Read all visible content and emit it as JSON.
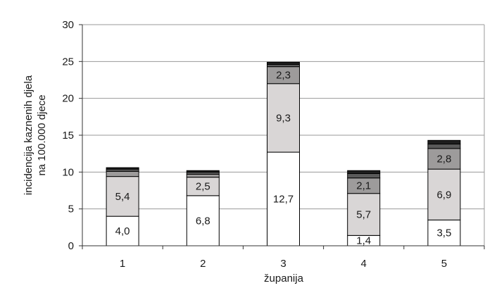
{
  "chart_data": {
    "type": "bar",
    "stacked": true,
    "categories": [
      "1",
      "2",
      "3",
      "4",
      "5"
    ],
    "xlabel": "županija",
    "ylabel_lines": [
      "incidencija kaznenih djela",
      "na 100.000 djece"
    ],
    "ylim": [
      0,
      30
    ],
    "yticks": [
      "0",
      "5",
      "10",
      "15",
      "20",
      "25",
      "30"
    ],
    "grid": "horizontal",
    "legend": "none",
    "series": [
      {
        "values": [
          4.0,
          6.8,
          12.7,
          1.4,
          3.5
        ],
        "labels": [
          "4,0",
          "6,8",
          "12,7",
          "1,4",
          "3,5"
        ],
        "color": "#ffffff"
      },
      {
        "values": [
          5.4,
          2.5,
          9.3,
          5.7,
          6.9
        ],
        "labels": [
          "5,4",
          "2,5",
          "9,3",
          "5,7",
          "6,9"
        ],
        "color": "#d9d6d6"
      },
      {
        "values": [
          0.7,
          0.4,
          2.3,
          2.1,
          2.8
        ],
        "labels": [
          "",
          "",
          "2,3",
          "2,1",
          "2,8"
        ],
        "color": "#9d9b9b"
      },
      {
        "values": [
          0.3,
          0.3,
          0.3,
          0.6,
          0.6
        ],
        "labels": [
          "",
          "",
          "",
          "",
          ""
        ],
        "color": "#5a5a5a"
      },
      {
        "values": [
          0.2,
          0.2,
          0.3,
          0.4,
          0.5
        ],
        "labels": [
          "",
          "",
          "",
          "",
          ""
        ],
        "color": "#1e1e1e"
      }
    ]
  }
}
